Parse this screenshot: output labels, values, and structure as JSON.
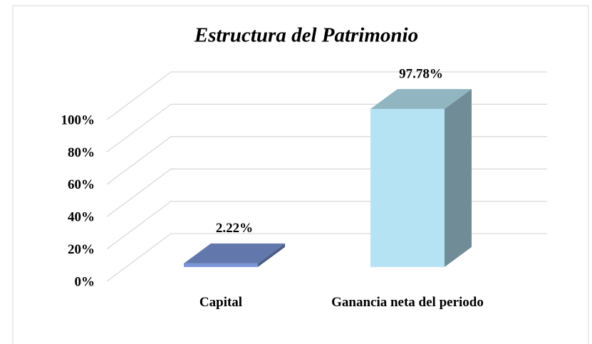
{
  "chart_data": {
    "type": "bar3d",
    "title": "Estructura del Patrimonio",
    "categories": [
      "Capital",
      "Ganancia neta del periodo"
    ],
    "values": [
      2.22,
      97.78
    ],
    "value_labels": [
      "2.22%",
      "97.78%"
    ],
    "colors": [
      "#7b96d8",
      "#b5e3f3"
    ],
    "ylim": [
      0,
      100
    ],
    "yticks": [
      {
        "value": 0,
        "label": "0%"
      },
      {
        "value": 20,
        "label": "20%"
      },
      {
        "value": 40,
        "label": "40%"
      },
      {
        "value": 60,
        "label": "60%"
      },
      {
        "value": 80,
        "label": "80%"
      },
      {
        "value": 100,
        "label": "100%"
      }
    ],
    "grid": true
  }
}
